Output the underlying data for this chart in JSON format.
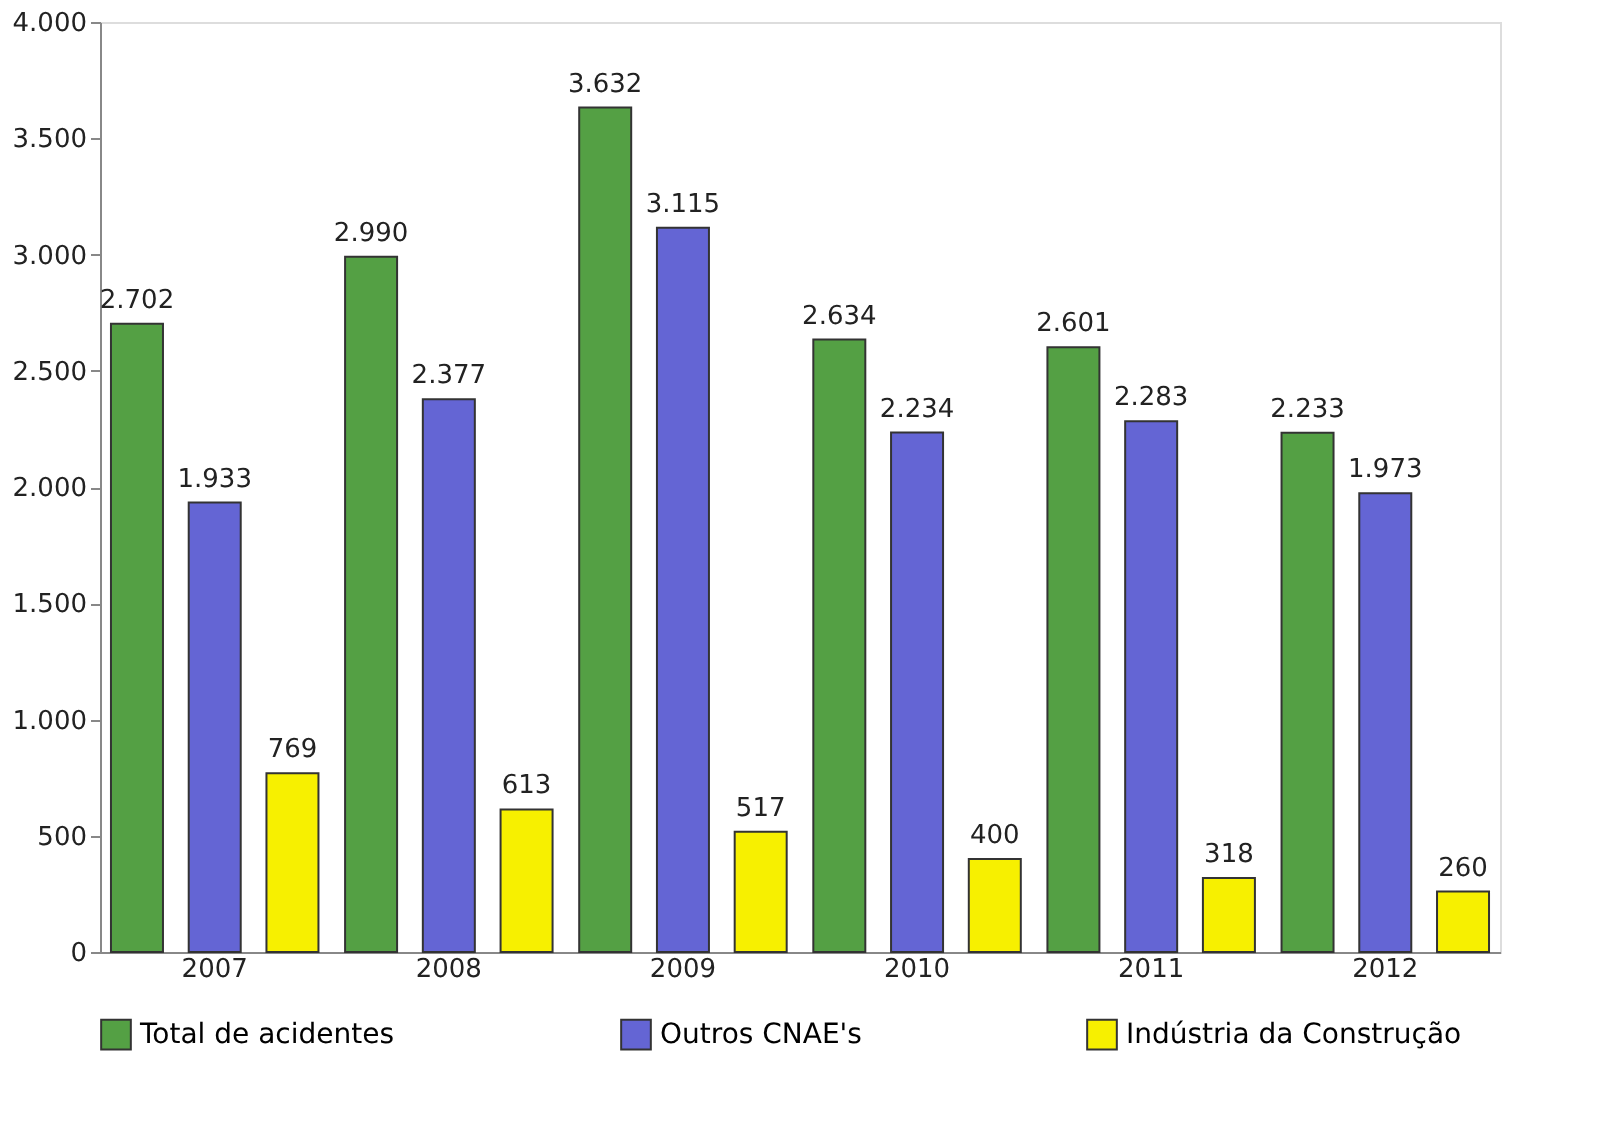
{
  "chart_data": {
    "type": "bar",
    "categories": [
      "2007",
      "2008",
      "2009",
      "2010",
      "2011",
      "2012"
    ],
    "series": [
      {
        "name": "Total de acidentes",
        "color": "#54a044",
        "values": [
          2702,
          2990,
          3632,
          2634,
          2601,
          2233
        ],
        "value_labels": [
          "2.702",
          "2.990",
          "3.632",
          "2.634",
          "2.601",
          "2.233"
        ]
      },
      {
        "name": "Outros CNAE's",
        "color": "#6465d4",
        "values": [
          1933,
          2377,
          3115,
          2234,
          2283,
          1973
        ],
        "value_labels": [
          "1.933",
          "2.377",
          "3.115",
          "2.234",
          "2.283",
          "1.973"
        ]
      },
      {
        "name": "Indústria da Construção",
        "color": "#f7f000",
        "values": [
          769,
          613,
          517,
          400,
          318,
          260
        ],
        "value_labels": [
          "769",
          "613",
          "517",
          "400",
          "318",
          "260"
        ]
      }
    ],
    "ylim": [
      0,
      4000
    ],
    "yticks": [
      0,
      {
        "value": 500,
        "label": "500"
      },
      {
        "value": 1000,
        "label": "1.000"
      },
      {
        "value": 1500,
        "label": "1.500"
      },
      {
        "value": 2000,
        "label": "2.000"
      },
      {
        "value": 2500,
        "label": "2.500"
      },
      {
        "value": 3000,
        "label": "3.000"
      },
      {
        "value": 3500,
        "label": "3.500"
      },
      {
        "value": 4000,
        "label": "4.000"
      }
    ],
    "grid": false,
    "legend": "bottom"
  }
}
